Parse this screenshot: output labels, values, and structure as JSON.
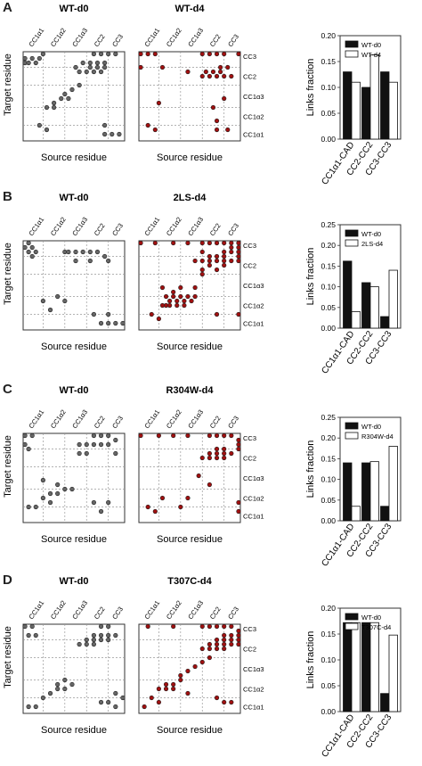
{
  "common": {
    "cols": [
      "CC1α1",
      "CC1α2",
      "CC1α3",
      "CC2",
      "CC3"
    ],
    "rows_right": [
      "CC3",
      "CC2",
      "CC1α3",
      "CC1α2",
      "CC1α1"
    ],
    "xlabel": "Source residue",
    "ylabel": "Target residue",
    "bar_ylabel": "Links fraction",
    "dark_color": "#666666",
    "red_color": "#a01010",
    "bar_dark": "#111111",
    "bar_light": "#ffffff"
  },
  "panels": [
    {
      "letter": "A",
      "left_title": "WT-d0",
      "right_title": "WT-d4",
      "left_points": [
        [
          1,
          2
        ],
        [
          3,
          2
        ],
        [
          5,
          2
        ],
        [
          1,
          3
        ],
        [
          2,
          3
        ],
        [
          4,
          3
        ],
        [
          6,
          1
        ],
        [
          20,
          1
        ],
        [
          22,
          1
        ],
        [
          24,
          1
        ],
        [
          26,
          1
        ],
        [
          17,
          3
        ],
        [
          19,
          3
        ],
        [
          21,
          3
        ],
        [
          23,
          3
        ],
        [
          19,
          4
        ],
        [
          21,
          4
        ],
        [
          23,
          4
        ],
        [
          15,
          4
        ],
        [
          16,
          5
        ],
        [
          18,
          5
        ],
        [
          20,
          5
        ],
        [
          22,
          5
        ],
        [
          12,
          10
        ],
        [
          14,
          9
        ],
        [
          16,
          8
        ],
        [
          9,
          12
        ],
        [
          11,
          11
        ],
        [
          13,
          11
        ],
        [
          7,
          13
        ],
        [
          9,
          13
        ],
        [
          5,
          17
        ],
        [
          7,
          18
        ],
        [
          23,
          17
        ],
        [
          23,
          19
        ],
        [
          25,
          19
        ],
        [
          27,
          19
        ]
      ],
      "right_points": [
        [
          1,
          1
        ],
        [
          3,
          1
        ],
        [
          5,
          1
        ],
        [
          18,
          1
        ],
        [
          20,
          1
        ],
        [
          22,
          1
        ],
        [
          24,
          1
        ],
        [
          28,
          1
        ],
        [
          1,
          4
        ],
        [
          7,
          4
        ],
        [
          23,
          4
        ],
        [
          25,
          4
        ],
        [
          19,
          5
        ],
        [
          21,
          5
        ],
        [
          23,
          5
        ],
        [
          18,
          6
        ],
        [
          20,
          6
        ],
        [
          22,
          6
        ],
        [
          24,
          6
        ],
        [
          26,
          6
        ],
        [
          14,
          5
        ],
        [
          24,
          11
        ],
        [
          6,
          12
        ],
        [
          21,
          13
        ],
        [
          3,
          17
        ],
        [
          5,
          18
        ],
        [
          22,
          16
        ],
        [
          22,
          18
        ],
        [
          25,
          18
        ]
      ],
      "chart_data": {
        "type": "bar",
        "categories": [
          "CC1α1-CAD",
          "CC2-CC2",
          "CC3-CC3"
        ],
        "series": [
          {
            "name": "WT-d0",
            "values": [
              0.13,
              0.1,
              0.13
            ]
          },
          {
            "name": "WT-d4",
            "values": [
              0.11,
              0.163,
              0.11
            ]
          }
        ],
        "ylim": [
          0,
          0.2
        ],
        "ticks": [
          "0.00",
          "0.05",
          "0.10",
          "0.15",
          "0.20"
        ],
        "ylabel": "Links fraction"
      }
    },
    {
      "letter": "B",
      "left_title": "WT-d0",
      "right_title": "2LS-d4",
      "left_points": [
        [
          2,
          1
        ],
        [
          1,
          2
        ],
        [
          3,
          2
        ],
        [
          2,
          3
        ],
        [
          4,
          3
        ],
        [
          3,
          4
        ],
        [
          12,
          3
        ],
        [
          13,
          3
        ],
        [
          15,
          3
        ],
        [
          17,
          3
        ],
        [
          19,
          3
        ],
        [
          21,
          3
        ],
        [
          23,
          4
        ],
        [
          24,
          5
        ],
        [
          19,
          5
        ],
        [
          15,
          5
        ],
        [
          10,
          13
        ],
        [
          12,
          14
        ],
        [
          6,
          14
        ],
        [
          8,
          16
        ],
        [
          20,
          17
        ],
        [
          24,
          17
        ],
        [
          22,
          19
        ],
        [
          24,
          19
        ],
        [
          26,
          19
        ],
        [
          28,
          19
        ]
      ],
      "right_points": [
        [
          1,
          1
        ],
        [
          5,
          1
        ],
        [
          10,
          1
        ],
        [
          14,
          1
        ],
        [
          18,
          1
        ],
        [
          20,
          1
        ],
        [
          22,
          1
        ],
        [
          24,
          1
        ],
        [
          26,
          1
        ],
        [
          28,
          1
        ],
        [
          26,
          2
        ],
        [
          28,
          2
        ],
        [
          24,
          3
        ],
        [
          26,
          3
        ],
        [
          28,
          3
        ],
        [
          18,
          3
        ],
        [
          20,
          4
        ],
        [
          22,
          4
        ],
        [
          24,
          4
        ],
        [
          28,
          4
        ],
        [
          16,
          5
        ],
        [
          18,
          5
        ],
        [
          20,
          5
        ],
        [
          22,
          5
        ],
        [
          24,
          5
        ],
        [
          26,
          5
        ],
        [
          28,
          5
        ],
        [
          20,
          6
        ],
        [
          24,
          6
        ],
        [
          18,
          7
        ],
        [
          18,
          8
        ],
        [
          22,
          7
        ],
        [
          7,
          11
        ],
        [
          8,
          13
        ],
        [
          10,
          13
        ],
        [
          12,
          13
        ],
        [
          14,
          13
        ],
        [
          9,
          14
        ],
        [
          11,
          14
        ],
        [
          13,
          14
        ],
        [
          15,
          14
        ],
        [
          16,
          13
        ],
        [
          7,
          15
        ],
        [
          9,
          15
        ],
        [
          11,
          15
        ],
        [
          13,
          15
        ],
        [
          4,
          17
        ],
        [
          6,
          18
        ],
        [
          8,
          15
        ],
        [
          10,
          12
        ],
        [
          12,
          11
        ],
        [
          16,
          11
        ],
        [
          22,
          17
        ],
        [
          28,
          17
        ]
      ],
      "chart_data": {
        "type": "bar",
        "categories": [
          "CC1α1-CAD",
          "CC2-CC2",
          "CC3-CC3"
        ],
        "series": [
          {
            "name": "WT-d0",
            "values": [
              0.162,
              0.11,
              0.028
            ]
          },
          {
            "name": "2LS-d4",
            "values": [
              0.04,
              0.1,
              0.14
            ]
          }
        ],
        "ylim": [
          0,
          0.25
        ],
        "ticks": [
          "0.00",
          "0.05",
          "0.10",
          "0.15",
          "0.20",
          "0.25"
        ],
        "ylabel": "Links fraction"
      }
    },
    {
      "letter": "C",
      "left_title": "WT-d0",
      "right_title": "R304W-d4",
      "left_points": [
        [
          1,
          1
        ],
        [
          3,
          1
        ],
        [
          1,
          3
        ],
        [
          2,
          4
        ],
        [
          20,
          1
        ],
        [
          22,
          1
        ],
        [
          24,
          1
        ],
        [
          26,
          2
        ],
        [
          26,
          5
        ],
        [
          16,
          3
        ],
        [
          18,
          3
        ],
        [
          20,
          3
        ],
        [
          22,
          3
        ],
        [
          24,
          3
        ],
        [
          16,
          5
        ],
        [
          18,
          5
        ],
        [
          14,
          13
        ],
        [
          12,
          13
        ],
        [
          10,
          12
        ],
        [
          10,
          14
        ],
        [
          8,
          14
        ],
        [
          6,
          11
        ],
        [
          6,
          15
        ],
        [
          8,
          16
        ],
        [
          4,
          17
        ],
        [
          2,
          17
        ],
        [
          20,
          16
        ],
        [
          24,
          16
        ],
        [
          22,
          18
        ]
      ],
      "right_points": [
        [
          1,
          1
        ],
        [
          6,
          1
        ],
        [
          10,
          1
        ],
        [
          14,
          1
        ],
        [
          20,
          1
        ],
        [
          22,
          1
        ],
        [
          24,
          1
        ],
        [
          26,
          1
        ],
        [
          28,
          2
        ],
        [
          28,
          3
        ],
        [
          28,
          4
        ],
        [
          22,
          4
        ],
        [
          24,
          4
        ],
        [
          20,
          5
        ],
        [
          22,
          5
        ],
        [
          24,
          5
        ],
        [
          26,
          5
        ],
        [
          18,
          6
        ],
        [
          20,
          6
        ],
        [
          22,
          6
        ],
        [
          24,
          6
        ],
        [
          17,
          10
        ],
        [
          20,
          12
        ],
        [
          3,
          17
        ],
        [
          5,
          18
        ],
        [
          7,
          15
        ],
        [
          12,
          17
        ],
        [
          14,
          15
        ],
        [
          28,
          16
        ],
        [
          28,
          18
        ]
      ],
      "chart_data": {
        "type": "bar",
        "categories": [
          "CC1α1-CAD",
          "CC2-CC2",
          "CC3-CC3"
        ],
        "series": [
          {
            "name": "WT-d0",
            "values": [
              0.14,
              0.14,
              0.035
            ]
          },
          {
            "name": "R304W-d4",
            "values": [
              0.035,
              0.143,
              0.18
            ]
          }
        ],
        "ylim": [
          0,
          0.25
        ],
        "ticks": [
          "0.00",
          "0.05",
          "0.10",
          "0.15",
          "0.20",
          "0.25"
        ],
        "ylabel": "Links fraction"
      }
    },
    {
      "letter": "D",
      "left_title": "WT-d0",
      "right_title": "T307C-d4",
      "left_points": [
        [
          1,
          1
        ],
        [
          3,
          1
        ],
        [
          2,
          3
        ],
        [
          4,
          3
        ],
        [
          22,
          1
        ],
        [
          24,
          1
        ],
        [
          20,
          3
        ],
        [
          22,
          3
        ],
        [
          24,
          3
        ],
        [
          26,
          3
        ],
        [
          18,
          4
        ],
        [
          20,
          4
        ],
        [
          22,
          4
        ],
        [
          24,
          4
        ],
        [
          16,
          5
        ],
        [
          18,
          5
        ],
        [
          20,
          5
        ],
        [
          12,
          13
        ],
        [
          10,
          14
        ],
        [
          14,
          14
        ],
        [
          8,
          16
        ],
        [
          6,
          17
        ],
        [
          10,
          15
        ],
        [
          12,
          15
        ],
        [
          2,
          19
        ],
        [
          4,
          19
        ],
        [
          22,
          18
        ],
        [
          24,
          18
        ],
        [
          26,
          16
        ],
        [
          28,
          17
        ],
        [
          26,
          19
        ]
      ],
      "right_points": [
        [
          3,
          1
        ],
        [
          10,
          1
        ],
        [
          18,
          1
        ],
        [
          20,
          1
        ],
        [
          22,
          1
        ],
        [
          24,
          1
        ],
        [
          26,
          1
        ],
        [
          28,
          2
        ],
        [
          28,
          3
        ],
        [
          28,
          4
        ],
        [
          28,
          5
        ],
        [
          24,
          3
        ],
        [
          26,
          3
        ],
        [
          22,
          4
        ],
        [
          24,
          4
        ],
        [
          26,
          4
        ],
        [
          20,
          5
        ],
        [
          22,
          5
        ],
        [
          24,
          5
        ],
        [
          26,
          5
        ],
        [
          18,
          6
        ],
        [
          20,
          6
        ],
        [
          22,
          6
        ],
        [
          24,
          6
        ],
        [
          20,
          8
        ],
        [
          18,
          9
        ],
        [
          16,
          10
        ],
        [
          14,
          11
        ],
        [
          12,
          12
        ],
        [
          10,
          14
        ],
        [
          8,
          14
        ],
        [
          6,
          15
        ],
        [
          8,
          15
        ],
        [
          10,
          15
        ],
        [
          12,
          13
        ],
        [
          4,
          17
        ],
        [
          6,
          18
        ],
        [
          2,
          19
        ],
        [
          14,
          16
        ],
        [
          22,
          17
        ],
        [
          24,
          18
        ],
        [
          26,
          18
        ]
      ],
      "chart_data": {
        "type": "bar",
        "categories": [
          "CC1α1-CAD",
          "CC2-CC2",
          "CC3-CC3"
        ],
        "series": [
          {
            "name": "WT-d0",
            "values": [
              0.172,
              0.172,
              0.035
            ]
          },
          {
            "name": "T307C-d4",
            "values": [
              0.172,
              0.172,
              0.148
            ]
          }
        ],
        "ylim": [
          0,
          0.2
        ],
        "ticks": [
          "0.00",
          "0.05",
          "0.10",
          "0.15",
          "0.20"
        ],
        "ylabel": "Links fraction"
      }
    }
  ]
}
